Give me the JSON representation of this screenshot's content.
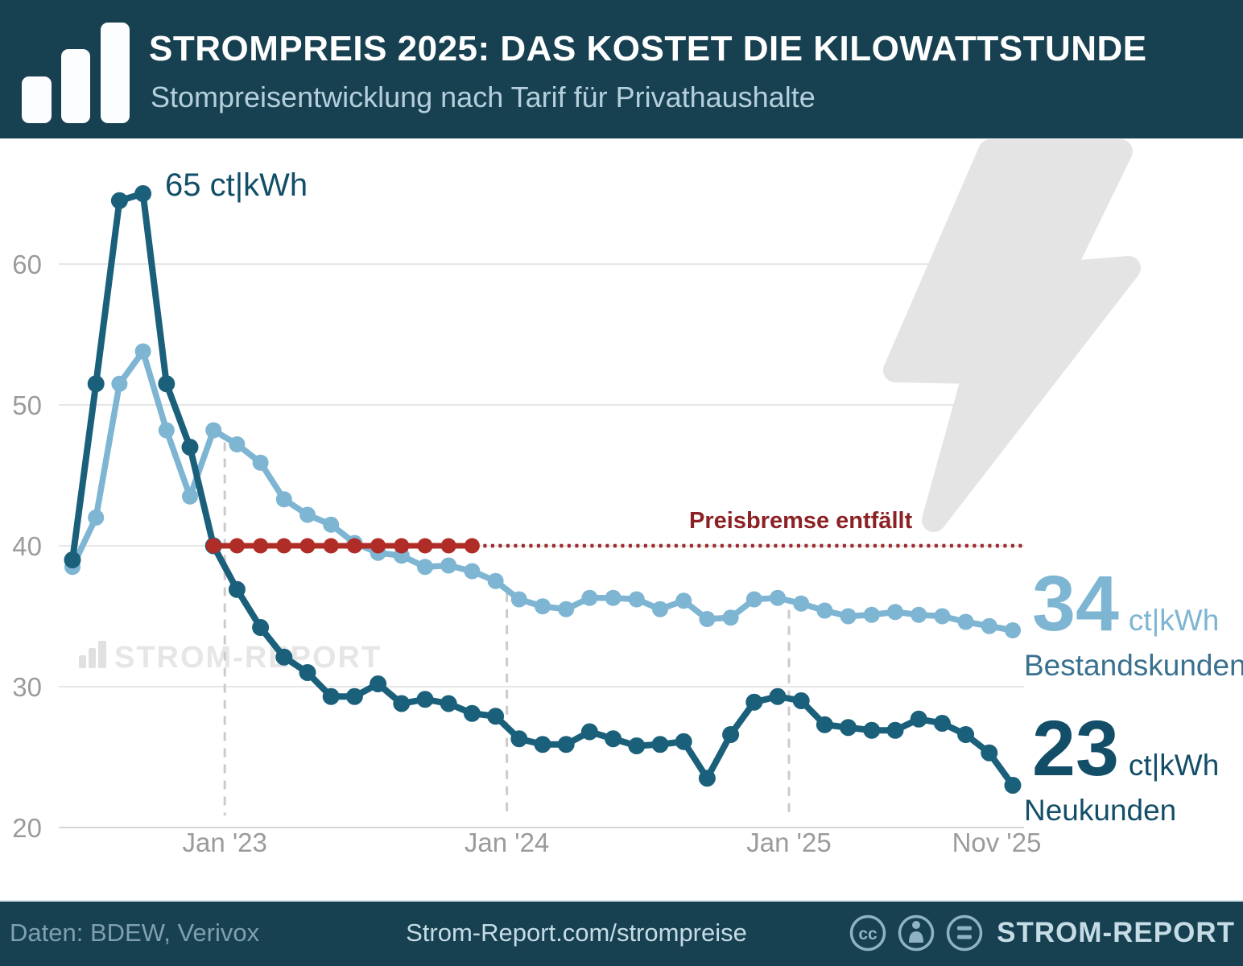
{
  "header": {
    "title": "STROMPREIS 2025: DAS KOSTET DIE KILOWATTSTUNDE",
    "subtitle": "Stompreisentwicklung nach Tarif für Privathaushalte",
    "logo_icon": "bar-chart-icon"
  },
  "chart_data": {
    "type": "line",
    "unit": "ct|kWh",
    "categories": [
      "Jul '22",
      "Aug '22",
      "Sep '22",
      "Okt '22",
      "Nov '22",
      "Dez '22",
      "Jan '23",
      "Feb '23",
      "Mär '23",
      "Apr '23",
      "Mai '23",
      "Jun '23",
      "Jul '23",
      "Aug '23",
      "Sep '23",
      "Okt '23",
      "Nov '23",
      "Dez '23",
      "Jan '24",
      "Feb '24",
      "Mär '24",
      "Apr '24",
      "Mai '24",
      "Jun '24",
      "Jul '24",
      "Aug '24",
      "Sep '24",
      "Okt '24",
      "Nov '24",
      "Dez '24",
      "Jan '25",
      "Feb '25",
      "Mär '25",
      "Apr '25",
      "Mai '25",
      "Jun '25",
      "Jul '25",
      "Aug '25",
      "Sep '25",
      "Okt '25",
      "Nov '25"
    ],
    "series": [
      {
        "name": "Bestandskunden",
        "color": "#7eb5d2",
        "values": [
          38.5,
          42,
          51.5,
          53.8,
          48.2,
          43.5,
          48.2,
          47.2,
          45.9,
          43.3,
          42.2,
          41.5,
          40.2,
          39.5,
          39.3,
          38.5,
          38.6,
          38.2,
          37.5,
          36.2,
          35.7,
          35.5,
          36.3,
          36.3,
          36.2,
          35.5,
          36.1,
          34.8,
          34.9,
          36.2,
          36.3,
          35.9,
          35.4,
          35.0,
          35.1,
          35.3,
          35.1,
          35.0,
          34.6,
          34.3,
          34.0
        ]
      },
      {
        "name": "Neukunden",
        "color": "#1b607b",
        "values": [
          39,
          51.5,
          64.5,
          65,
          51.5,
          47,
          40,
          36.9,
          34.2,
          32.1,
          31.0,
          29.3,
          29.3,
          30.2,
          28.8,
          29.1,
          28.8,
          28.1,
          27.9,
          26.3,
          25.9,
          25.9,
          26.8,
          26.3,
          25.8,
          25.9,
          26.1,
          23.5,
          26.6,
          28.9,
          29.3,
          29.0,
          27.3,
          27.1,
          26.9,
          26.9,
          27.7,
          27.4,
          26.6,
          25.3,
          23.0
        ]
      }
    ],
    "yticks": [
      20,
      30,
      40,
      50,
      60
    ],
    "ylim": [
      20,
      67
    ],
    "xticks": [
      {
        "label": "Jan '23",
        "month": 6,
        "dashed": true
      },
      {
        "label": "Jan '24",
        "month": 18,
        "dashed": true
      },
      {
        "label": "Jan '25",
        "month": 30,
        "dashed": true
      },
      {
        "label": "Nov '25",
        "month": 40,
        "dashed": false
      }
    ],
    "reference_line": {
      "label": "Preisbremse entfällt",
      "value": 40,
      "color_solid": "#b02c26",
      "color_dotted": "#9d2b2e",
      "solid_from_month": 6,
      "solid_to_month": 17
    },
    "annotations": {
      "peak": "65 ct|kWh"
    },
    "end_labels": [
      {
        "value": "34",
        "unit": "ct|kWh",
        "name": "Bestandskunden"
      },
      {
        "value": "23",
        "unit": "ct|kWh",
        "name": "Neukunden"
      }
    ],
    "grid": true,
    "legend_position": "end-of-line"
  },
  "watermark": {
    "text": "STROM-REPORT",
    "icon": "bar-chart-icon"
  },
  "footer": {
    "source": "Daten: BDEW, Verivox",
    "url": "Strom-Report.com/strompreise",
    "brand": "STROM-REPORT",
    "license_icons": [
      "cc-icon",
      "attribution-icon",
      "equal-icon"
    ]
  }
}
